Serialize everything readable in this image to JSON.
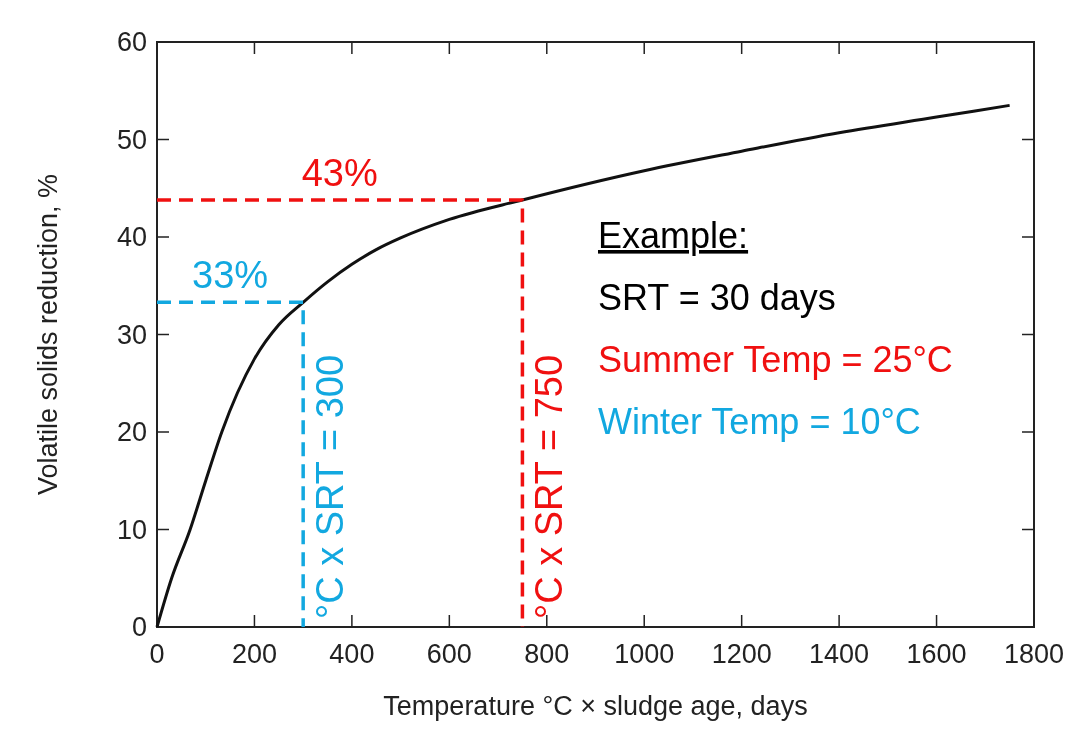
{
  "chart_data": {
    "type": "line",
    "xlabel": "Temperature °C × sludge age, days",
    "ylabel": "Volatile solids reduction, %",
    "xlim": [
      0,
      1800
    ],
    "xticks": [
      0,
      200,
      400,
      600,
      800,
      1000,
      1200,
      1400,
      1600,
      1800
    ],
    "ylim": [
      0,
      60
    ],
    "yticks": [
      0,
      10,
      20,
      30,
      40,
      50,
      60
    ],
    "series": [
      {
        "color": "#111111",
        "line_style": "solid",
        "x": [
          0,
          30,
          68,
          100,
          133,
          200,
          250,
          300,
          350,
          400,
          450,
          500,
          600,
          750,
          1000,
          1200,
          1400,
          1600,
          1750
        ],
        "values": [
          0,
          5,
          10,
          15,
          20,
          27.5,
          31,
          33.3,
          35.4,
          37.2,
          38.7,
          39.9,
          41.8,
          43.8,
          46.8,
          48.8,
          50.7,
          52.3,
          53.5
        ]
      },
      {
        "color": "#12a8e0",
        "line_style": "dashed",
        "x": [
          0,
          300,
          300
        ],
        "values": [
          33.3,
          33.3,
          0
        ]
      },
      {
        "color": "#f01010",
        "line_style": "dashed",
        "x": [
          0,
          750,
          750
        ],
        "values": [
          43.8,
          43.8,
          0
        ]
      }
    ],
    "annotations": [
      {
        "text": "33%",
        "x": 150,
        "y": 33.3
      },
      {
        "text": "°C x SRT = 300",
        "x": 300,
        "y": 0
      },
      {
        "text": "43%",
        "x": 375,
        "y": 43.8
      },
      {
        "text": "°C x SRT = 750",
        "x": 750,
        "y": 0
      },
      "Example:",
      "SRT = 30 days",
      "Summer Temp = 25°C",
      "Winter Temp = 10°C"
    ],
    "marker": "none"
  }
}
